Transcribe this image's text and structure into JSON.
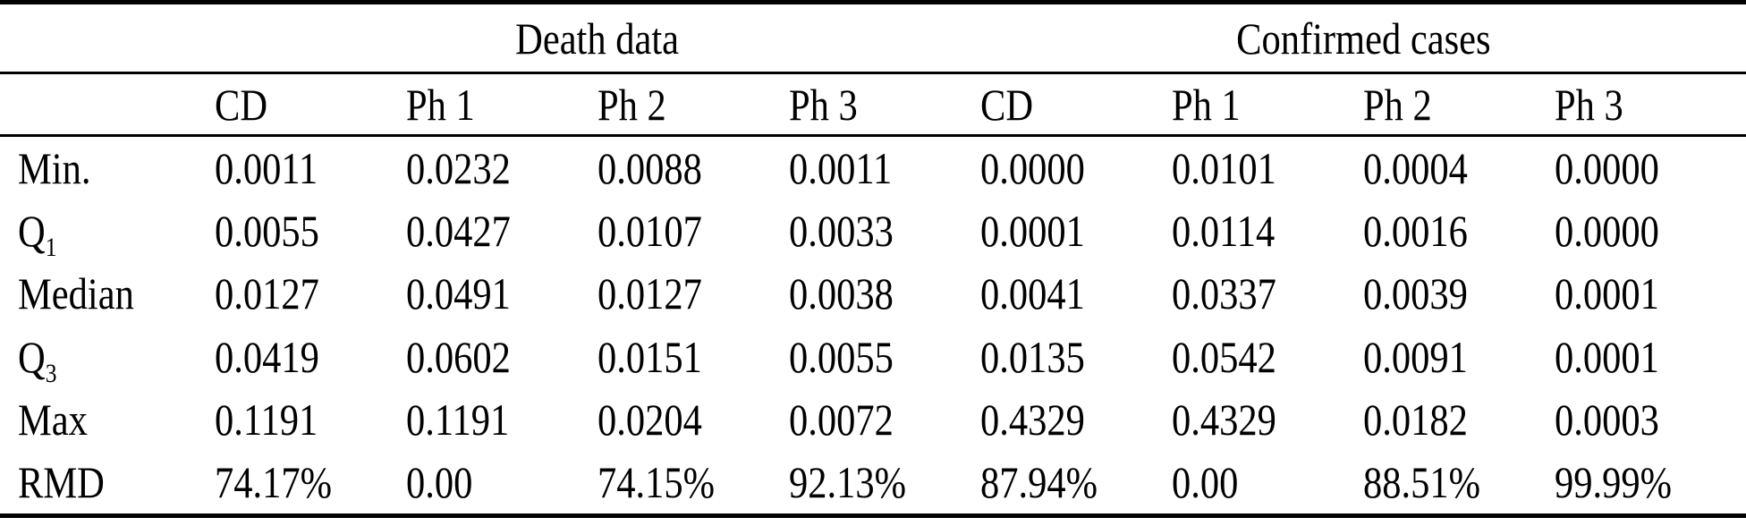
{
  "table": {
    "group_headers": {
      "death": "Death data",
      "confirmed": "Confirmed cases"
    },
    "column_headers": [
      "CD",
      "Ph 1",
      "Ph 2",
      "Ph 3",
      "CD",
      "Ph 1",
      "Ph 2",
      "Ph 3"
    ],
    "rows": [
      {
        "label": "Min.",
        "sub": "",
        "values": [
          "0.0011",
          "0.0232",
          "0.0088",
          "0.0011",
          "0.0000",
          "0.0101",
          "0.0004",
          "0.0000"
        ]
      },
      {
        "label": "Q",
        "sub": "1",
        "values": [
          "0.0055",
          "0.0427",
          "0.0107",
          "0.0033",
          "0.0001",
          "0.0114",
          "0.0016",
          "0.0000"
        ]
      },
      {
        "label": "Median",
        "sub": "",
        "values": [
          "0.0127",
          "0.0491",
          "0.0127",
          "0.0038",
          "0.0041",
          "0.0337",
          "0.0039",
          "0.0001"
        ]
      },
      {
        "label": "Q",
        "sub": "3",
        "values": [
          "0.0419",
          "0.0602",
          "0.0151",
          "0.0055",
          "0.0135",
          "0.0542",
          "0.0091",
          "0.0001"
        ]
      },
      {
        "label": "Max",
        "sub": "",
        "values": [
          "0.1191",
          "0.1191",
          "0.0204",
          "0.0072",
          "0.4329",
          "0.4329",
          "0.0182",
          "0.0003"
        ]
      },
      {
        "label": "RMD",
        "sub": "",
        "values": [
          "74.17%",
          "0.00",
          "74.15%",
          "92.13%",
          "87.94%",
          "0.00",
          "88.51%",
          "99.99%"
        ]
      }
    ],
    "colors": {
      "text": "#000000",
      "background": "#ffffff",
      "rule": "#000000"
    }
  },
  "chart_data": {
    "type": "table",
    "column_groups": [
      {
        "label": "Death data",
        "span": [
          "CD",
          "Ph 1",
          "Ph 2",
          "Ph 3"
        ]
      },
      {
        "label": "Confirmed cases",
        "span": [
          "CD",
          "Ph 1",
          "Ph 2",
          "Ph 3"
        ]
      }
    ],
    "columns": [
      "",
      "CD",
      "Ph 1",
      "Ph 2",
      "Ph 3",
      "CD",
      "Ph 1",
      "Ph 2",
      "Ph 3"
    ],
    "rows": [
      [
        "Min.",
        "0.0011",
        "0.0232",
        "0.0088",
        "0.0011",
        "0.0000",
        "0.0101",
        "0.0004",
        "0.0000"
      ],
      [
        "Q1",
        "0.0055",
        "0.0427",
        "0.0107",
        "0.0033",
        "0.0001",
        "0.0114",
        "0.0016",
        "0.0000"
      ],
      [
        "Median",
        "0.0127",
        "0.0491",
        "0.0127",
        "0.0038",
        "0.0041",
        "0.0337",
        "0.0039",
        "0.0001"
      ],
      [
        "Q3",
        "0.0419",
        "0.0602",
        "0.0151",
        "0.0055",
        "0.0135",
        "0.0542",
        "0.0091",
        "0.0001"
      ],
      [
        "Max",
        "0.1191",
        "0.1191",
        "0.0204",
        "0.0072",
        "0.4329",
        "0.4329",
        "0.0182",
        "0.0003"
      ],
      [
        "RMD",
        "74.17%",
        "0.00",
        "74.15%",
        "92.13%",
        "87.94%",
        "0.00",
        "88.51%",
        "99.99%"
      ]
    ]
  }
}
